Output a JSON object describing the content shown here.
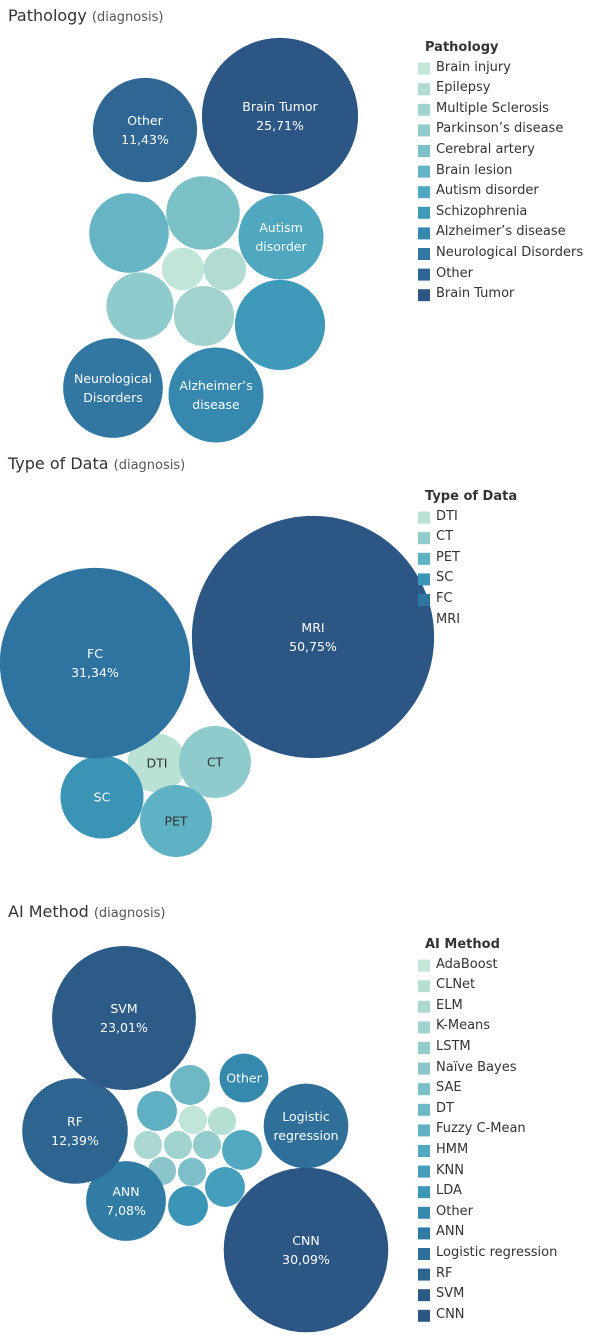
{
  "chart_data": [
    {
      "type": "bubble",
      "title": "Pathology",
      "subtitle": "(diagnosis)",
      "legend_title": "Pathology",
      "categories": [
        "Brain injury",
        "Epilepsy",
        "Multiple Sclerosis",
        "Parkinson’s disease",
        "Cerebral artery",
        "Brain lesion",
        "Autism disorder",
        "Schizophrenia",
        "Alzheimer’s disease",
        "Neurological Disorders",
        "Other",
        "Brain Tumor"
      ],
      "values": [
        1.9,
        1.9,
        3.81,
        4.76,
        5.71,
        6.67,
        7.62,
        8.57,
        9.52,
        10.48,
        11.43,
        25.71
      ],
      "labels": [
        null,
        null,
        null,
        null,
        null,
        null,
        "Autism disorder",
        null,
        "Alzheimer’s disease",
        "Neurological Disorders",
        "Other",
        "Brain Tumor"
      ],
      "value_labels": [
        null,
        null,
        null,
        null,
        null,
        null,
        null,
        null,
        null,
        null,
        "11,43%",
        "25,71%"
      ],
      "colors": [
        "#c1e6d7",
        "#b2dcd3",
        "#a3d3cf",
        "#8fcacc",
        "#7cc0c8",
        "#66b4c4",
        "#50a8c0",
        "#3f99b8",
        "#3688ae",
        "#3277a2",
        "#2f6694",
        "#2c5784"
      ]
    },
    {
      "type": "bubble",
      "title": "Type of Data",
      "subtitle": "(diagnosis)",
      "legend_title": "Type of Data",
      "categories": [
        "DTI",
        "CT",
        "PET",
        "SC",
        "FC",
        "MRI"
      ],
      "values": [
        2.99,
        4.48,
        4.48,
        5.97,
        31.34,
        50.75
      ],
      "labels": [
        "DTI",
        "CT",
        "PET",
        "SC",
        "FC",
        "MRI"
      ],
      "value_labels": [
        null,
        null,
        null,
        null,
        "31,34%",
        "50,75%"
      ],
      "colors": [
        "#b9e2d4",
        "#8fcacc",
        "#5eb2c4",
        "#3a94b5",
        "#2f73a0",
        "#2c5784"
      ]
    },
    {
      "type": "bubble",
      "title": "AI Method",
      "subtitle": "(diagnosis)",
      "legend_title": "AI Method",
      "categories": [
        "AdaBoost",
        "CLNet",
        "ELM",
        "K-Means",
        "LSTM",
        "Naïve Bayes",
        "SAE",
        "DT",
        "Fuzzy C-Mean",
        "HMM",
        "KNN",
        "LDA",
        "Other",
        "ANN",
        "Logistic regression",
        "RF",
        "SVM",
        "CNN"
      ],
      "values": [
        0.88,
        0.88,
        0.88,
        0.88,
        0.88,
        0.88,
        0.88,
        1.77,
        1.77,
        1.77,
        1.77,
        1.77,
        2.65,
        7.08,
        7.96,
        12.39,
        23.01,
        30.09
      ],
      "labels": [
        null,
        null,
        null,
        null,
        null,
        null,
        null,
        null,
        null,
        null,
        null,
        null,
        "Other",
        "ANN",
        "Logistic regression",
        "RF",
        "SVM",
        "CNN"
      ],
      "value_labels": [
        null,
        null,
        null,
        null,
        null,
        null,
        null,
        null,
        null,
        null,
        null,
        null,
        null,
        "7,08%",
        null,
        "12,39%",
        "23,01%",
        "30,09%"
      ],
      "colors": [
        "#c1e6d7",
        "#b6dfd4",
        "#abd8d1",
        "#a0d2cf",
        "#94cccd",
        "#89c5cb",
        "#7cbfc8",
        "#6eb8c6",
        "#60b0c3",
        "#52a8c0",
        "#459fbc",
        "#3b95b6",
        "#3589ad",
        "#317ca4",
        "#2f6f99",
        "#2d6490",
        "#2c5b88",
        "#2c5784"
      ]
    }
  ]
}
